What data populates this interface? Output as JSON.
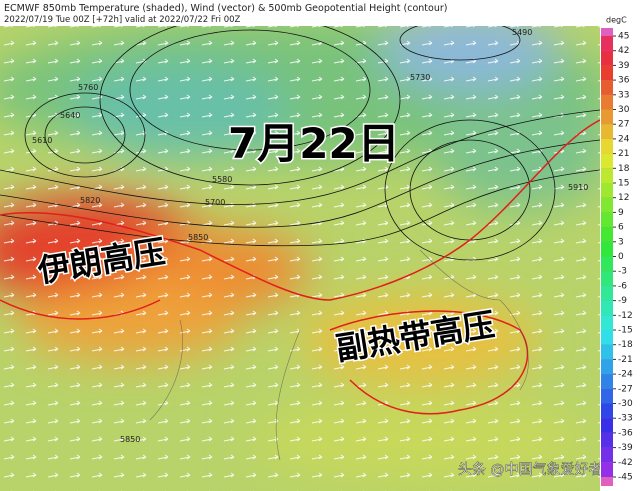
{
  "header": {
    "title": "ECMWF 850mb Temperature (shaded), Wind (vector) & 500mb Geopotential Height (contour)",
    "subtitle": "2022/07/19 Tue 00Z [+72h] valid at 2022/07/22 Fri 00Z"
  },
  "colorbar": {
    "unit": "degC",
    "ticks": [
      45,
      42,
      39,
      36,
      33,
      30,
      27,
      24,
      21,
      18,
      15,
      12,
      9,
      6,
      3,
      0,
      -3,
      -6,
      -9,
      -12,
      -15,
      -18,
      -21,
      -24,
      -27,
      -30,
      -33,
      -36,
      -39,
      -42,
      -45
    ]
  },
  "annotations": [
    "7月22日",
    "伊朗高压",
    "副热带高压"
  ],
  "contour_labels": [
    5760,
    5640,
    5610,
    5580,
    5700,
    5820,
    5850,
    5730,
    5490,
    5910,
    5850
  ],
  "watermark": "头条 @中国气象爱好者"
}
